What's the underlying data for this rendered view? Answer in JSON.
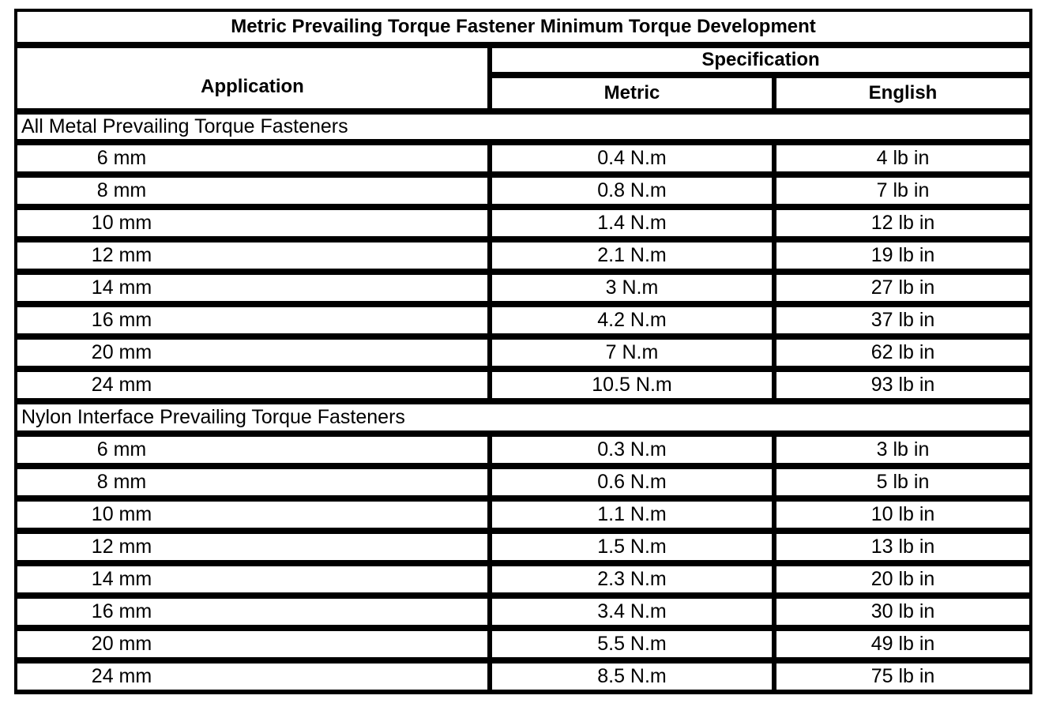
{
  "title": "Metric Prevailing Torque Fastener Minimum Torque Development",
  "header": {
    "application": "Application",
    "specification": "Specification",
    "metric": "Metric",
    "english": "English"
  },
  "sections": [
    {
      "name": "All Metal Prevailing Torque Fasteners",
      "rows": [
        {
          "size": "6 mm",
          "metric": "0.4 N.m",
          "english": "4 lb in"
        },
        {
          "size": "8 mm",
          "metric": "0.8 N.m",
          "english": "7 lb in"
        },
        {
          "size": "10 mm",
          "metric": "1.4 N.m",
          "english": "12 lb in"
        },
        {
          "size": "12 mm",
          "metric": "2.1 N.m",
          "english": "19 lb in"
        },
        {
          "size": "14 mm",
          "metric": "3 N.m",
          "english": "27 lb in"
        },
        {
          "size": "16 mm",
          "metric": "4.2 N.m",
          "english": "37 lb in"
        },
        {
          "size": "20 mm",
          "metric": "7 N.m",
          "english": "62 lb in"
        },
        {
          "size": "24 mm",
          "metric": "10.5 N.m",
          "english": "93 lb in"
        }
      ]
    },
    {
      "name": "Nylon Interface Prevailing Torque Fasteners",
      "rows": [
        {
          "size": "6 mm",
          "metric": "0.3 N.m",
          "english": "3 lb in"
        },
        {
          "size": "8 mm",
          "metric": "0.6 N.m",
          "english": "5 lb in"
        },
        {
          "size": "10 mm",
          "metric": "1.1 N.m",
          "english": "10 lb in"
        },
        {
          "size": "12 mm",
          "metric": "1.5 N.m",
          "english": "13 lb in"
        },
        {
          "size": "14 mm",
          "metric": "2.3 N.m",
          "english": "20 lb in"
        },
        {
          "size": "16 mm",
          "metric": "3.4 N.m",
          "english": "30 lb in"
        },
        {
          "size": "20 mm",
          "metric": "5.5 N.m",
          "english": "49 lb in"
        },
        {
          "size": "24 mm",
          "metric": "8.5 N.m",
          "english": "75 lb in"
        }
      ]
    }
  ],
  "colors": {
    "border": "#000000",
    "background": "#ffffff",
    "text": "#000000"
  }
}
